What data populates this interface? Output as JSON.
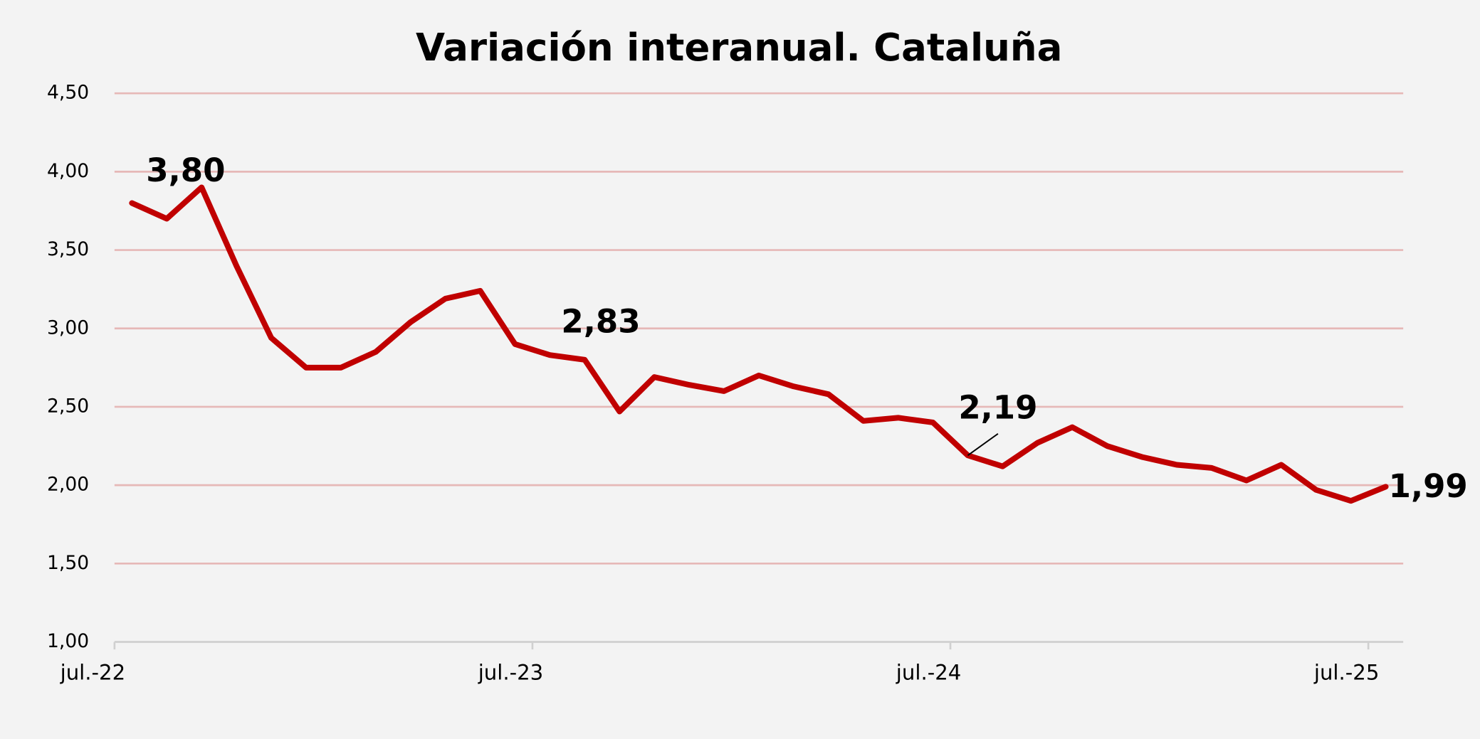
{
  "chart_data": {
    "type": "line",
    "title": "Variación interanual. Cataluña",
    "categories": [
      "jul.-22",
      null,
      null,
      null,
      null,
      null,
      null,
      null,
      null,
      null,
      null,
      null,
      "jul.-23",
      null,
      null,
      null,
      null,
      null,
      null,
      null,
      null,
      null,
      null,
      null,
      "jul.-24",
      null,
      null,
      null,
      null,
      null,
      null,
      null,
      null,
      null,
      null,
      null,
      "jul.-25"
    ],
    "series": [
      {
        "name": "Variación interanual",
        "color": "#c00000",
        "values": [
          3.8,
          3.7,
          3.9,
          3.4,
          2.94,
          2.75,
          2.75,
          2.85,
          3.04,
          3.19,
          3.24,
          2.9,
          2.83,
          2.8,
          2.47,
          2.69,
          2.64,
          2.6,
          2.7,
          2.63,
          2.58,
          2.41,
          2.43,
          2.4,
          2.19,
          2.12,
          2.27,
          2.37,
          2.25,
          2.18,
          2.13,
          2.11,
          2.03,
          2.13,
          1.97,
          1.9,
          1.99
        ],
        "value_labels": [
          "3,80",
          null,
          null,
          null,
          null,
          null,
          null,
          null,
          null,
          null,
          null,
          null,
          "2,83",
          null,
          null,
          null,
          null,
          null,
          null,
          null,
          null,
          null,
          null,
          null,
          "2,19",
          null,
          null,
          null,
          null,
          null,
          null,
          null,
          null,
          null,
          null,
          null,
          "1,99"
        ]
      }
    ],
    "ylim": [
      1.0,
      4.5
    ],
    "yticks": [
      {
        "value": 1.0,
        "label": "1,00"
      },
      {
        "value": 1.5,
        "label": "1,50"
      },
      {
        "value": 2.0,
        "label": "2,00"
      },
      {
        "value": 2.5,
        "label": "2,50"
      },
      {
        "value": 3.0,
        "label": "3,00"
      },
      {
        "value": 3.5,
        "label": "3,50"
      },
      {
        "value": 4.0,
        "label": "4,00"
      },
      {
        "value": 4.5,
        "label": "4,50"
      }
    ],
    "grid": true,
    "grid_color": "#e6b8b7"
  }
}
